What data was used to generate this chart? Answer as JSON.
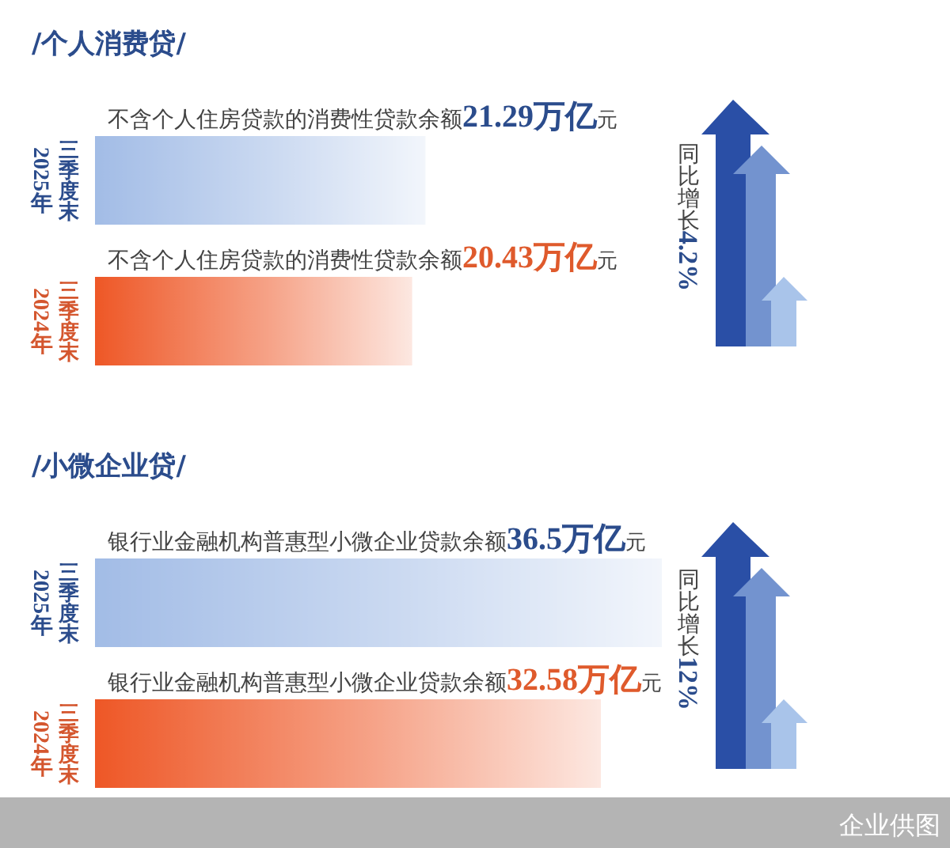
{
  "chart_data": [
    {
      "type": "bar",
      "orientation": "horizontal",
      "title": "/个人消费贷/",
      "categories": [
        "2025年三季度末",
        "2024年三季度末"
      ],
      "values": [
        21.29,
        20.43
      ],
      "colors": [
        "#a2bce6",
        "#ee5726"
      ],
      "value_labels": [
        "不含个人住房贷款的消费性贷款余额21.29万亿元",
        "不含个人住房贷款的消费性贷款余额20.43万亿元"
      ],
      "tick_labels": "y",
      "annotations": [
        "同比增长4.2%"
      ]
    },
    {
      "type": "bar",
      "orientation": "horizontal",
      "title": "/小微企业贷/",
      "categories": [
        "2025年三季度末",
        "2024年三季度末"
      ],
      "values": [
        36.5,
        32.58
      ],
      "colors": [
        "#a2bce6",
        "#ee5726"
      ],
      "value_labels": [
        "银行业金融机构普惠型小微企业贷款余额36.5万亿元",
        "银行业金融机构普惠型小微企业贷款余额32.58万亿元"
      ],
      "tick_labels": "y",
      "annotations": [
        "同比增长12%",
        "企业供图"
      ]
    }
  ]
}
